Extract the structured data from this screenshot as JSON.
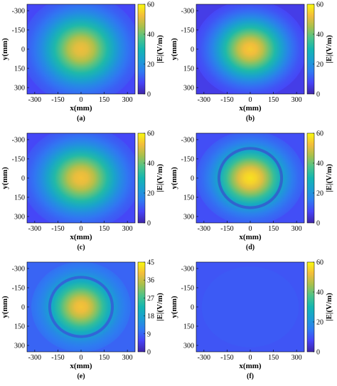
{
  "panels": [
    {
      "caption": "(a)",
      "cbar_ticks": [
        "0",
        "20",
        "40",
        "60"
      ]
    },
    {
      "caption": "(b)",
      "cbar_ticks": [
        "0",
        "20",
        "40",
        "60"
      ]
    },
    {
      "caption": "(c)",
      "cbar_ticks": [
        "0",
        "20",
        "40",
        "60"
      ]
    },
    {
      "caption": "(d)",
      "cbar_ticks": [
        "0",
        "20",
        "40",
        "60"
      ]
    },
    {
      "caption": "(e)",
      "cbar_ticks": [
        "0",
        "9",
        "18",
        "27",
        "36",
        "45"
      ]
    },
    {
      "caption": "(f)",
      "cbar_ticks": [
        "0",
        "20",
        "40",
        "60"
      ]
    }
  ],
  "axes": {
    "xlabel": "x(mm)",
    "ylabel": "y(mm)",
    "cbar_label": "|E|(V/m)",
    "x_ticks": [
      "-300",
      "-150",
      "0",
      "150",
      "300"
    ],
    "y_ticks": [
      "-300",
      "-150",
      "0",
      "150",
      "300"
    ]
  },
  "colormap": [
    "#3e26a8",
    "#4743f7",
    "#2f7af2",
    "#1b9ed3",
    "#13b6b1",
    "#4cc38a",
    "#a8c04c",
    "#f4bd3b",
    "#f8fa0d"
  ],
  "chart_data": [
    {
      "type": "heatmap",
      "caption": "(a)",
      "xlabel": "x(mm)",
      "ylabel": "y(mm)",
      "xlim": [
        -350,
        350
      ],
      "ylim": [
        -350,
        350
      ],
      "y_axis_reversed": true,
      "clim": [
        0,
        60
      ],
      "colorbar_label": "|E|(V/m)",
      "peak": 52,
      "peak_location": [
        0,
        0
      ],
      "background": 8
    },
    {
      "type": "heatmap",
      "caption": "(b)",
      "xlabel": "x(mm)",
      "ylabel": "y(mm)",
      "xlim": [
        -350,
        350
      ],
      "ylim": [
        -350,
        350
      ],
      "y_axis_reversed": true,
      "clim": [
        0,
        60
      ],
      "colorbar_label": "|E|(V/m)",
      "peak": 54,
      "peak_location": [
        0,
        0
      ],
      "background": 6
    },
    {
      "type": "heatmap",
      "caption": "(c)",
      "xlabel": "x(mm)",
      "ylabel": "y(mm)",
      "xlim": [
        -350,
        350
      ],
      "ylim": [
        -350,
        350
      ],
      "y_axis_reversed": true,
      "clim": [
        0,
        60
      ],
      "colorbar_label": "|E|(V/m)",
      "peak": 53,
      "peak_location": [
        0,
        0
      ],
      "background": 8
    },
    {
      "type": "heatmap",
      "caption": "(d)",
      "xlabel": "x(mm)",
      "ylabel": "y(mm)",
      "xlim": [
        -350,
        350
      ],
      "ylim": [
        -350,
        350
      ],
      "y_axis_reversed": true,
      "clim": [
        0,
        60
      ],
      "colorbar_label": "|E|(V/m)",
      "peak": 57,
      "peak_location": [
        0,
        0
      ],
      "background": 9
    },
    {
      "type": "heatmap",
      "caption": "(e)",
      "xlabel": "x(mm)",
      "ylabel": "y(mm)",
      "xlim": [
        -350,
        350
      ],
      "ylim": [
        -350,
        350
      ],
      "y_axis_reversed": true,
      "clim": [
        0,
        45
      ],
      "colorbar_label": "|E|(V/m)",
      "peak": 40,
      "peak_location": [
        0,
        0
      ],
      "background": 9
    },
    {
      "type": "heatmap",
      "caption": "(f)",
      "xlabel": "x(mm)",
      "ylabel": "y(mm)",
      "xlim": [
        -350,
        350
      ],
      "ylim": [
        -350,
        350
      ],
      "y_axis_reversed": true,
      "clim": [
        0,
        60
      ],
      "colorbar_label": "|E|(V/m)",
      "peak": 11,
      "peak_location": [
        0,
        0
      ],
      "background": 10
    }
  ]
}
